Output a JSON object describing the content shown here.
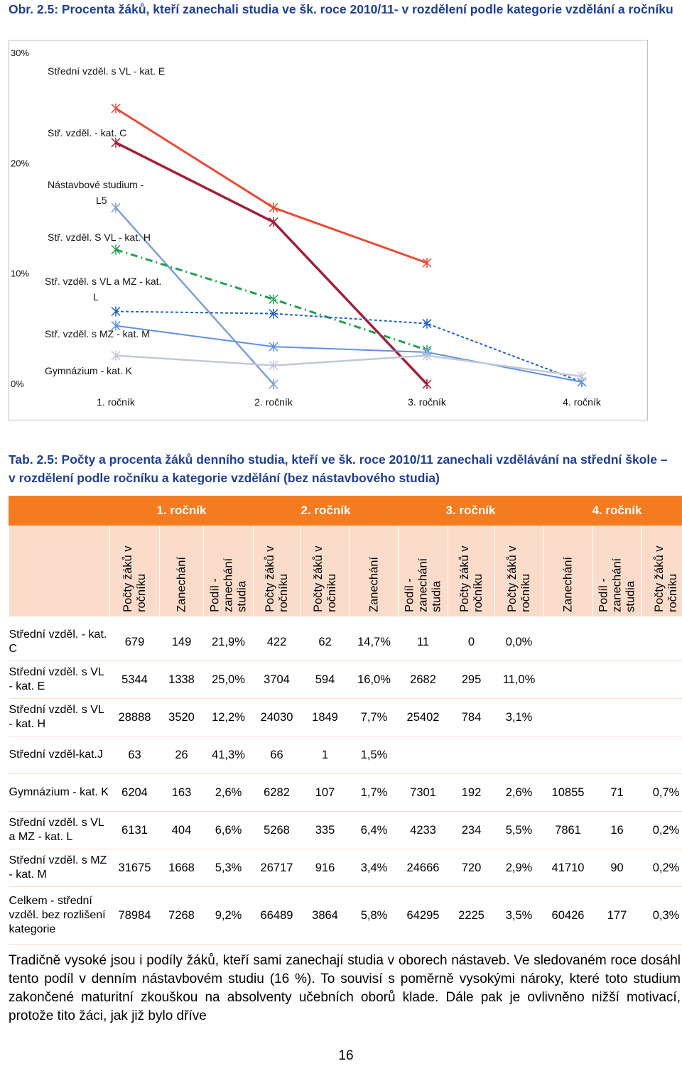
{
  "figure": {
    "caption": "Obr. 2.5: Procenta žáků, kteří zanechali studia ve šk. roce 2010/11- v rozdělení podle kategorie vzdělání a ročníku"
  },
  "chart_data": {
    "type": "line",
    "categories": [
      "1. ročník",
      "2. ročník",
      "3. ročník",
      "4. ročník"
    ],
    "y_ticks": [
      "30%",
      "20%",
      "10%",
      "0%"
    ],
    "ylim": [
      0,
      30
    ],
    "series": [
      {
        "name": "Střední vzděl. s VL - kat. E",
        "label": "Střední vzděl. s VL - kat. E",
        "color": "#e84a36",
        "values": [
          25.0,
          16.0,
          11.0,
          null
        ]
      },
      {
        "name": "Stř. vzděl. - kat. C",
        "label": "Stř. vzděl. - kat. C",
        "color": "#a0203c",
        "values": [
          21.9,
          14.7,
          0.0,
          null
        ]
      },
      {
        "name": "Nástavbové studium - L5",
        "label": "Nástavbové studium - L5",
        "color": "#7f9fd0",
        "values": [
          16.0,
          0.0,
          null,
          null
        ]
      },
      {
        "name": "Stř. vzděl. S VL - kat. H",
        "label": "Stř. vzděl. S VL - kat. H",
        "color": "#20a050",
        "values": [
          12.2,
          7.7,
          3.1,
          null
        ]
      },
      {
        "name": "Stř. vzděl. s VL a MZ - kat. L",
        "label": "Stř. vzděl. s VL a MZ - kat. L",
        "color": "#2060c0",
        "values": [
          6.6,
          6.4,
          5.5,
          0.2
        ]
      },
      {
        "name": "Stř. vzděl. s MZ - kat. M",
        "label": "Stř. vzděl. s MZ - kat. M",
        "color": "#6090e0",
        "values": [
          5.3,
          3.4,
          2.9,
          0.2
        ]
      },
      {
        "name": "Gymnázium - kat. K",
        "label": "Gymnázium - kat. K",
        "color": "#c0c8d8",
        "values": [
          2.6,
          1.7,
          2.6,
          0.7
        ]
      }
    ],
    "title": "",
    "xlabel": "",
    "ylabel": ""
  },
  "table": {
    "caption": "Tab. 2.5: Počty a procenta žáků denního studia, kteří ve šk. roce 2010/11 zanechali vzdělávání na střední škole – v rozdělení podle ročníku a kategorie vzdělání (bez nástavbového studia)",
    "years": [
      "1. ročník",
      "2. ročník",
      "3. ročník",
      "4. ročník"
    ],
    "subheaders": [
      "Počty žáků v ročníku",
      "Zanechání",
      "Podíl - zanechání studia",
      "Počty žáků v ročníku",
      "Počty žáků v ročníku",
      "Zanechání",
      "Podíl - zanechání studia",
      "Počty žáků v ročníku",
      "Počty žáků v ročníku",
      "Zanechání",
      "Podíl - zanechání studia",
      "Počty žáků v ročníku"
    ],
    "rows": [
      {
        "category": "Střední vzděl. - kat. C",
        "values": [
          "679",
          "149",
          "21,9%",
          "422",
          "62",
          "14,7%",
          "11",
          "0",
          "0,0%",
          "",
          "",
          ""
        ]
      },
      {
        "category": "Střední vzděl. s VL - kat. E",
        "values": [
          "5344",
          "1338",
          "25,0%",
          "3704",
          "594",
          "16,0%",
          "2682",
          "295",
          "11,0%",
          "",
          "",
          ""
        ]
      },
      {
        "category": "Střední vzděl. s VL - kat. H",
        "values": [
          "28888",
          "3520",
          "12,2%",
          "24030",
          "1849",
          "7,7%",
          "25402",
          "784",
          "3,1%",
          "",
          "",
          ""
        ]
      },
      {
        "category": "Střední vzděl-kat.J",
        "values": [
          "63",
          "26",
          "41,3%",
          "66",
          "1",
          "1,5%",
          "",
          "",
          "",
          "",
          "",
          ""
        ]
      },
      {
        "category": "Gymnázium - kat. K",
        "values": [
          "6204",
          "163",
          "2,6%",
          "6282",
          "107",
          "1,7%",
          "7301",
          "192",
          "2,6%",
          "10855",
          "71",
          "0,7%"
        ]
      },
      {
        "category": "Střední vzděl. s VL a MZ - kat. L",
        "values": [
          "6131",
          "404",
          "6,6%",
          "5268",
          "335",
          "6,4%",
          "4233",
          "234",
          "5,5%",
          "7861",
          "16",
          "0,2%"
        ]
      },
      {
        "category": "Střední vzděl. s MZ - kat. M",
        "values": [
          "31675",
          "1668",
          "5,3%",
          "26717",
          "916",
          "3,4%",
          "24666",
          "720",
          "2,9%",
          "41710",
          "90",
          "0,2%"
        ]
      },
      {
        "category": "Celkem - střední vzděl. bez rozlišení kategorie",
        "values": [
          "78984",
          "7268",
          "9,2%",
          "66489",
          "3864",
          "5,8%",
          "64295",
          "2225",
          "3,5%",
          "60426",
          "177",
          "0,3%"
        ]
      }
    ]
  },
  "paragraph": "Tradičně vysoké jsou i podíly žáků, kteří sami zanechají studia v oborech nástaveb. Ve sledovaném roce dosáhl tento podíl v denním nástavbovém studiu (16 %). To souvisí s poměrně vysokými nároky, které toto studium zakončené maturitní zkouškou na absolventy učebních oborů klade. Dále pak je ovlivněno nižší motivací, protože tito žáci, jak již bylo dříve",
  "page_number": "16"
}
